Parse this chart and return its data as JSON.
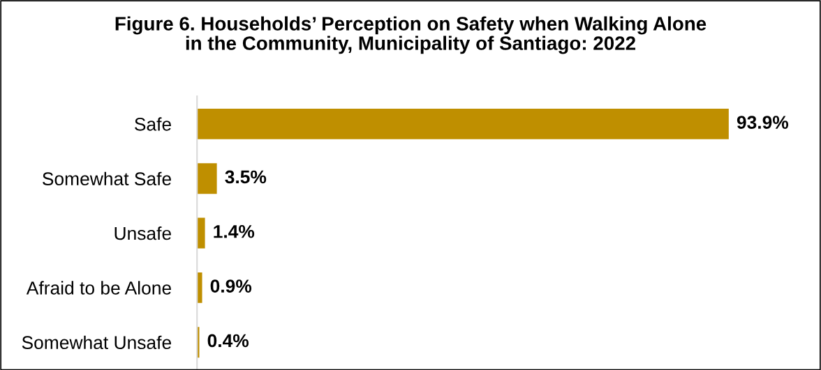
{
  "chart_data": {
    "type": "bar",
    "orientation": "horizontal",
    "title": "Figure 6. Households’ Perception on Safety when Walking Alone\nin the Community, Municipality of Santiago: 2022",
    "categories": [
      "Safe",
      "Somewhat Safe",
      "Unsafe",
      "Afraid to be Alone",
      "Somewhat Unsafe"
    ],
    "values": [
      93.9,
      3.5,
      1.4,
      0.9,
      0.4
    ],
    "value_labels": [
      "93.9%",
      "3.5%",
      "1.4%",
      "0.9%",
      "0.4%"
    ],
    "color": "#bf8f00",
    "grid": false,
    "legend": false
  }
}
